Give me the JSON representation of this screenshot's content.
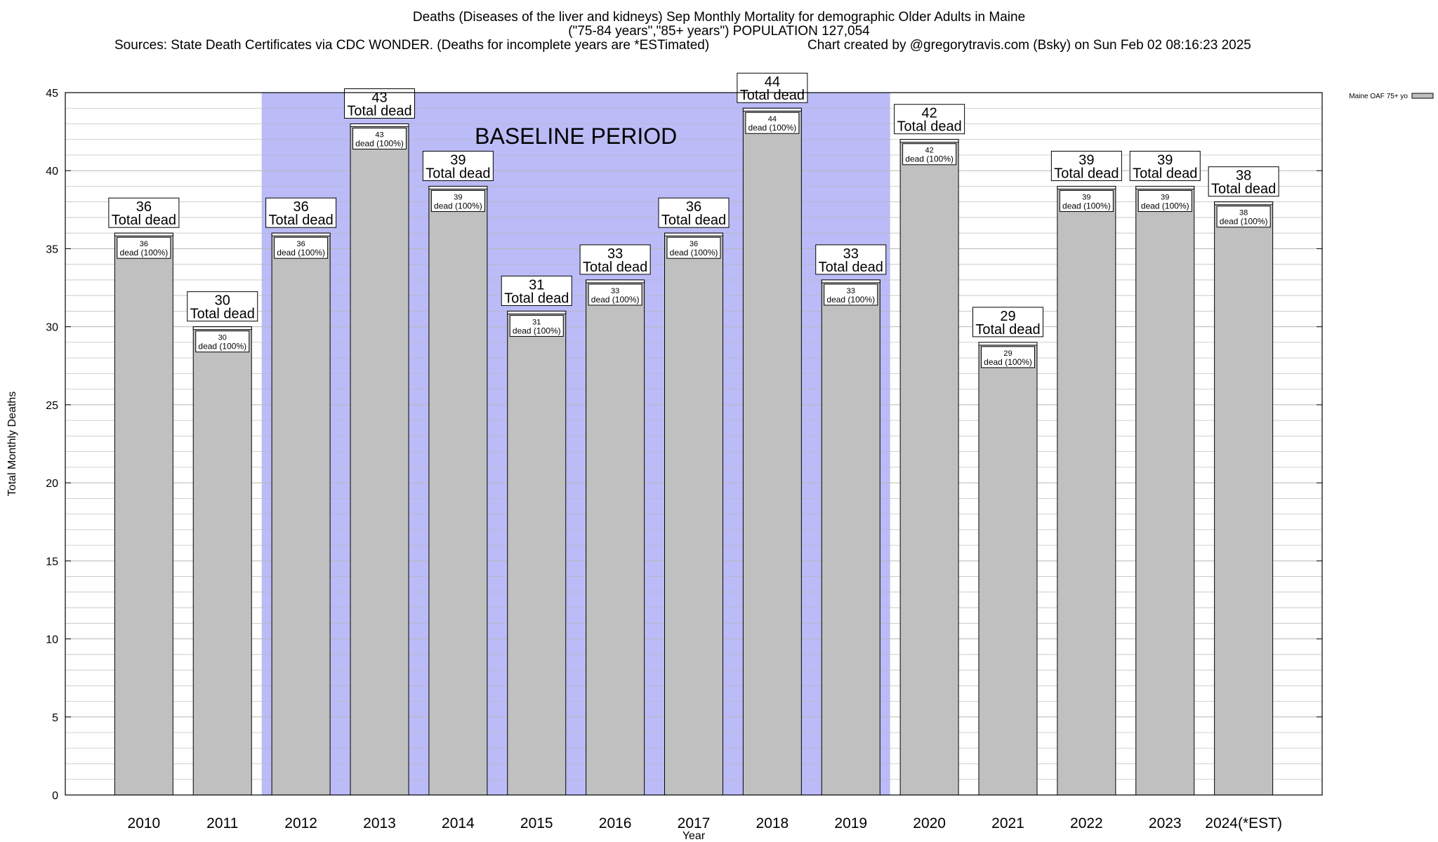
{
  "header": {
    "title_line1": "Deaths (Diseases of the liver and kidneys) Sep Monthly Mortality for demographic Older Adults in Maine",
    "title_line2": "(\"75-84 years\",\"85+ years\") POPULATION 127,054",
    "sources": "Sources: State Death Certificates via CDC WONDER. (Deaths for incomplete years are *ESTimated)",
    "credit": "Chart created by @gregorytravis.com (Bsky) on Sun Feb 02 08:16:23 2025"
  },
  "chart_data": {
    "type": "bar",
    "categories": [
      "2010",
      "2011",
      "2012",
      "2013",
      "2014",
      "2015",
      "2016",
      "2017",
      "2018",
      "2019",
      "2020",
      "2021",
      "2022",
      "2023",
      "2024(*EST)"
    ],
    "series": [
      {
        "name": "Maine OAF 75+ yo",
        "values": [
          36,
          30,
          36,
          43,
          39,
          31,
          33,
          36,
          44,
          33,
          42,
          29,
          39,
          39,
          38
        ]
      }
    ],
    "xlabel": "Year",
    "ylabel": "Total Monthly Deaths",
    "ylim": [
      0,
      45
    ],
    "yticks": [
      0,
      5,
      10,
      15,
      20,
      25,
      30,
      35,
      40,
      45
    ],
    "grid": true,
    "legend_position": "top-right",
    "baseline": {
      "label": "BASELINE PERIOD",
      "from": "2012",
      "to": "2019"
    },
    "top_label_suffix": "Total dead",
    "inner_label_suffix": "dead (100%)",
    "colors": {
      "bar": "#c0c0c0",
      "baseline": "#bbbbf8",
      "grid": "#b8b8b8"
    }
  }
}
